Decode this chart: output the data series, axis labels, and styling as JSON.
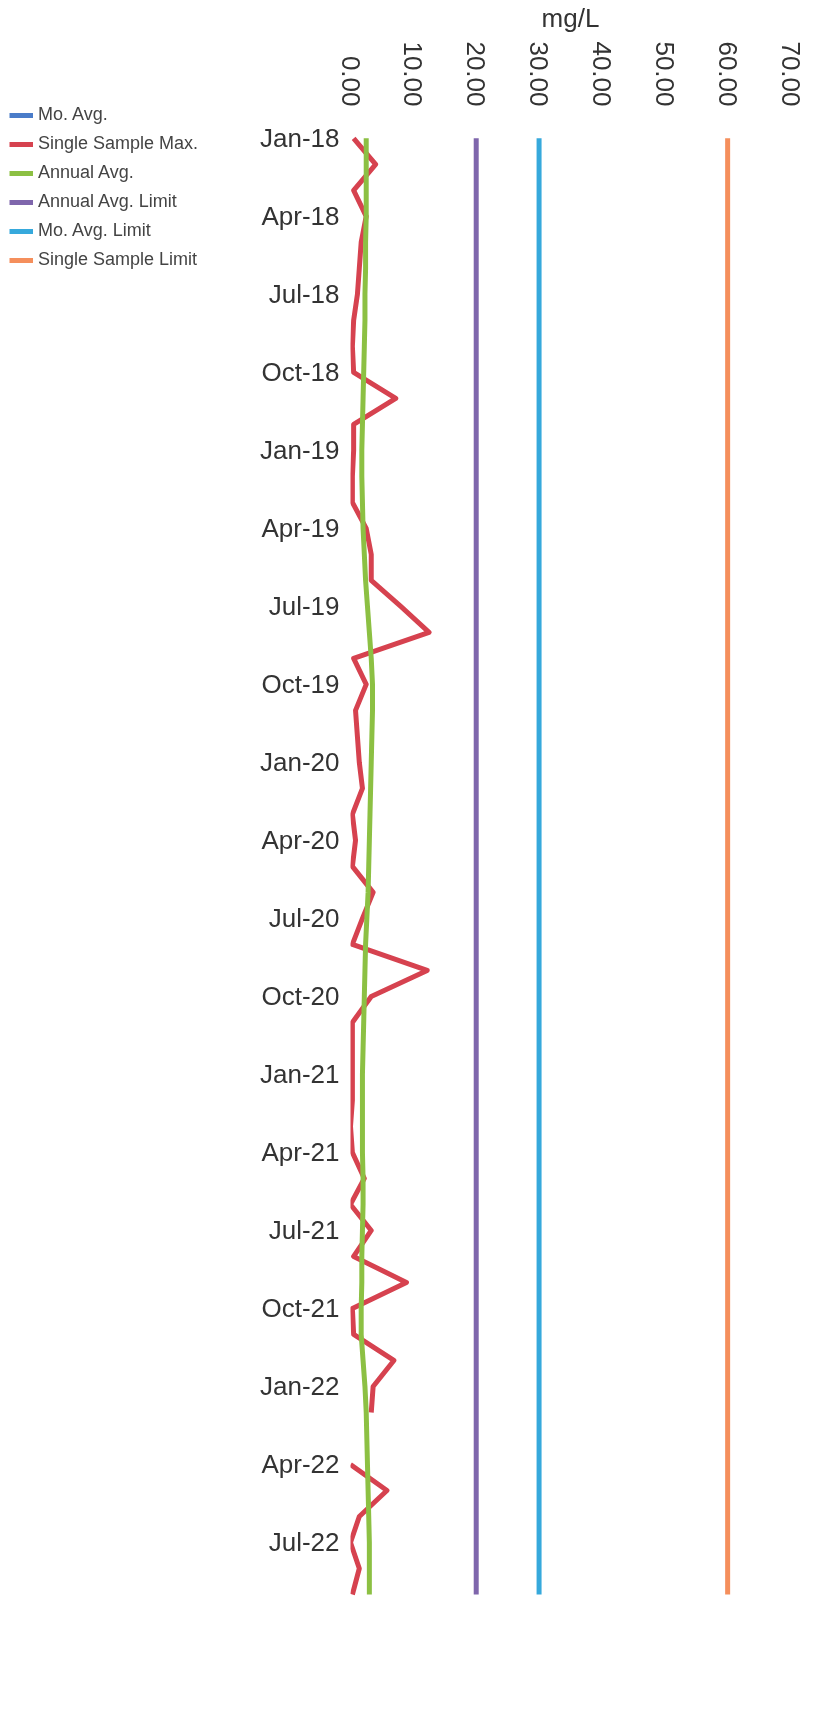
{
  "chart_data": {
    "type": "line",
    "orientation": "horizontal",
    "xlabel": "mg/L",
    "categories": [
      "Jan-18",
      null,
      null,
      "Apr-18",
      null,
      null,
      "Jul-18",
      null,
      null,
      "Oct-18",
      null,
      null,
      "Jan-19",
      null,
      null,
      "Apr-19",
      null,
      null,
      "Jul-19",
      null,
      null,
      "Oct-19",
      null,
      null,
      "Jan-20",
      null,
      null,
      "Apr-20",
      null,
      null,
      "Jul-20",
      null,
      null,
      "Oct-20",
      null,
      null,
      "Jan-21",
      null,
      null,
      "Apr-21",
      null,
      null,
      "Jul-21",
      null,
      null,
      "Oct-21",
      null,
      null,
      "Jan-22",
      null,
      null,
      "Apr-22",
      null,
      null,
      "Jul-22",
      null,
      null
    ],
    "xlim": [
      0,
      70
    ],
    "xticks": [
      {
        "value": 0,
        "label": "0.00"
      },
      {
        "value": 10,
        "label": "10.00"
      },
      {
        "value": 20,
        "label": "20.00"
      },
      {
        "value": 30,
        "label": "30.00"
      },
      {
        "value": 40,
        "label": "40.00"
      },
      {
        "value": 50,
        "label": "50.00"
      },
      {
        "value": 60,
        "label": "60.00"
      },
      {
        "value": 70,
        "label": "70.00"
      }
    ],
    "grid": false,
    "legend": "left",
    "marker": "none",
    "line_style": "solid",
    "series": [
      {
        "name": "Mo. Avg.",
        "color": "#4a7cc9",
        "values": [
          null,
          null,
          null,
          null,
          null,
          null,
          null,
          null,
          null,
          null,
          null,
          null,
          null,
          null,
          null,
          null,
          null,
          null,
          null,
          null,
          null,
          null,
          null,
          null,
          null,
          null,
          null,
          null,
          null,
          null,
          null,
          null,
          null,
          null,
          null,
          null,
          null,
          null,
          null,
          null,
          null,
          null,
          null,
          null,
          null,
          null,
          null,
          null,
          null,
          null,
          null,
          null,
          null,
          null,
          null,
          null,
          null
        ]
      },
      {
        "name": "Single Sample Max.",
        "color": "#d6424f",
        "values": [
          0.5,
          4,
          0.5,
          2.5,
          1.7,
          1.4,
          1.1,
          0.5,
          0.3,
          0.5,
          7.2,
          0.5,
          0.5,
          0.3,
          0.3,
          2.5,
          3.3,
          3.3,
          8,
          12.5,
          0.5,
          2.5,
          0.8,
          1.1,
          1.4,
          1.9,
          0.3,
          0.8,
          0.3,
          3.6,
          1.9,
          0.3,
          12.2,
          3.3,
          0.3,
          0.3,
          0.3,
          0.3,
          0,
          0.3,
          2.2,
          0,
          3.3,
          0.5,
          8.9,
          0.3,
          0.5,
          6.9,
          3.6,
          3.3,
          null,
          0,
          5.8,
          1.4,
          0,
          1.4,
          0.3
        ]
      },
      {
        "name": "Annual Avg.",
        "color": "#8cc043",
        "values": [
          2.5,
          2.5,
          2.5,
          2.5,
          2.4,
          2.4,
          2.3,
          2.3,
          2.2,
          2.1,
          2.0,
          1.9,
          1.8,
          1.8,
          1.9,
          2.0,
          2.2,
          2.4,
          2.7,
          3.0,
          3.3,
          3.5,
          3.5,
          3.4,
          3.3,
          3.2,
          3.1,
          3.0,
          2.9,
          2.8,
          2.6,
          2.4,
          2.3,
          2.2,
          2.1,
          2.0,
          1.9,
          1.9,
          1.9,
          1.9,
          2.0,
          2.0,
          1.9,
          1.8,
          1.8,
          1.7,
          1.7,
          2.0,
          2.3,
          2.5,
          2.6,
          2.7,
          2.8,
          2.9,
          3.0,
          3.0,
          3.0
        ]
      },
      {
        "name": "Annual Avg. Limit",
        "color": "#7f66ac",
        "values": [
          20,
          20,
          20,
          20,
          20,
          20,
          20,
          20,
          20,
          20,
          20,
          20,
          20,
          20,
          20,
          20,
          20,
          20,
          20,
          20,
          20,
          20,
          20,
          20,
          20,
          20,
          20,
          20,
          20,
          20,
          20,
          20,
          20,
          20,
          20,
          20,
          20,
          20,
          20,
          20,
          20,
          20,
          20,
          20,
          20,
          20,
          20,
          20,
          20,
          20,
          20,
          20,
          20,
          20,
          20,
          20,
          20
        ]
      },
      {
        "name": "Mo. Avg. Limit",
        "color": "#36a9dc",
        "values": [
          30,
          30,
          30,
          30,
          30,
          30,
          30,
          30,
          30,
          30,
          30,
          30,
          30,
          30,
          30,
          30,
          30,
          30,
          30,
          30,
          30,
          30,
          30,
          30,
          30,
          30,
          30,
          30,
          30,
          30,
          30,
          30,
          30,
          30,
          30,
          30,
          30,
          30,
          30,
          30,
          30,
          30,
          30,
          30,
          30,
          30,
          30,
          30,
          30,
          30,
          30,
          30,
          30,
          30,
          30,
          30,
          30
        ]
      },
      {
        "name": "Single Sample Limit",
        "color": "#f58f5c",
        "values": [
          60,
          60,
          60,
          60,
          60,
          60,
          60,
          60,
          60,
          60,
          60,
          60,
          60,
          60,
          60,
          60,
          60,
          60,
          60,
          60,
          60,
          60,
          60,
          60,
          60,
          60,
          60,
          60,
          60,
          60,
          60,
          60,
          60,
          60,
          60,
          60,
          60,
          60,
          60,
          60,
          60,
          60,
          60,
          60,
          60,
          60,
          60,
          60,
          60,
          60,
          60,
          60,
          60,
          60,
          60,
          60,
          60
        ]
      }
    ]
  }
}
